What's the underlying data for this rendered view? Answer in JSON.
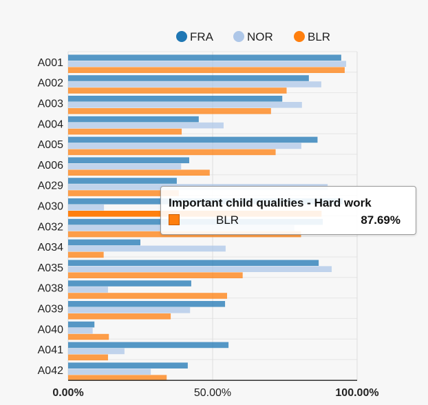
{
  "chart_data": {
    "type": "bar",
    "orientation": "horizontal",
    "categories": [
      "A001",
      "A002",
      "A003",
      "A004",
      "A005",
      "A006",
      "A029",
      "A030",
      "A032",
      "A034",
      "A035",
      "A038",
      "A039",
      "A040",
      "A041",
      "A042"
    ],
    "series": [
      {
        "name": "FRA",
        "color": "#1f77b4",
        "values": [
          94.5,
          83.3,
          74.1,
          45.2,
          86.3,
          41.9,
          37.6,
          95.0,
          88.1,
          25.0,
          86.7,
          42.6,
          54.3,
          9.1,
          55.5,
          41.4
        ]
      },
      {
        "name": "NOR",
        "color": "#aec7e8",
        "values": [
          96.2,
          87.6,
          80.9,
          53.8,
          80.7,
          39.1,
          89.8,
          12.4,
          78.3,
          54.5,
          91.2,
          13.8,
          42.2,
          8.5,
          19.5,
          28.6
        ]
      },
      {
        "name": "BLR",
        "color": "#ff7f0e",
        "values": [
          95.7,
          75.6,
          70.2,
          39.3,
          71.8,
          49.0,
          38.3,
          87.69,
          80.6,
          12.3,
          60.4,
          55.0,
          35.5,
          14.1,
          13.8,
          34.1
        ]
      }
    ],
    "xlim": [
      0,
      100
    ],
    "xticks": [
      "0.00%",
      "50.00%",
      "100.00%"
    ],
    "grid": true,
    "legend": "top-center",
    "highlight_category": "A030",
    "highlight_series": "BLR"
  },
  "tooltip": {
    "title": "Important child qualities - Hard work",
    "series": "BLR",
    "value": "87.69%",
    "swatch_color": "#ff7f0e"
  }
}
